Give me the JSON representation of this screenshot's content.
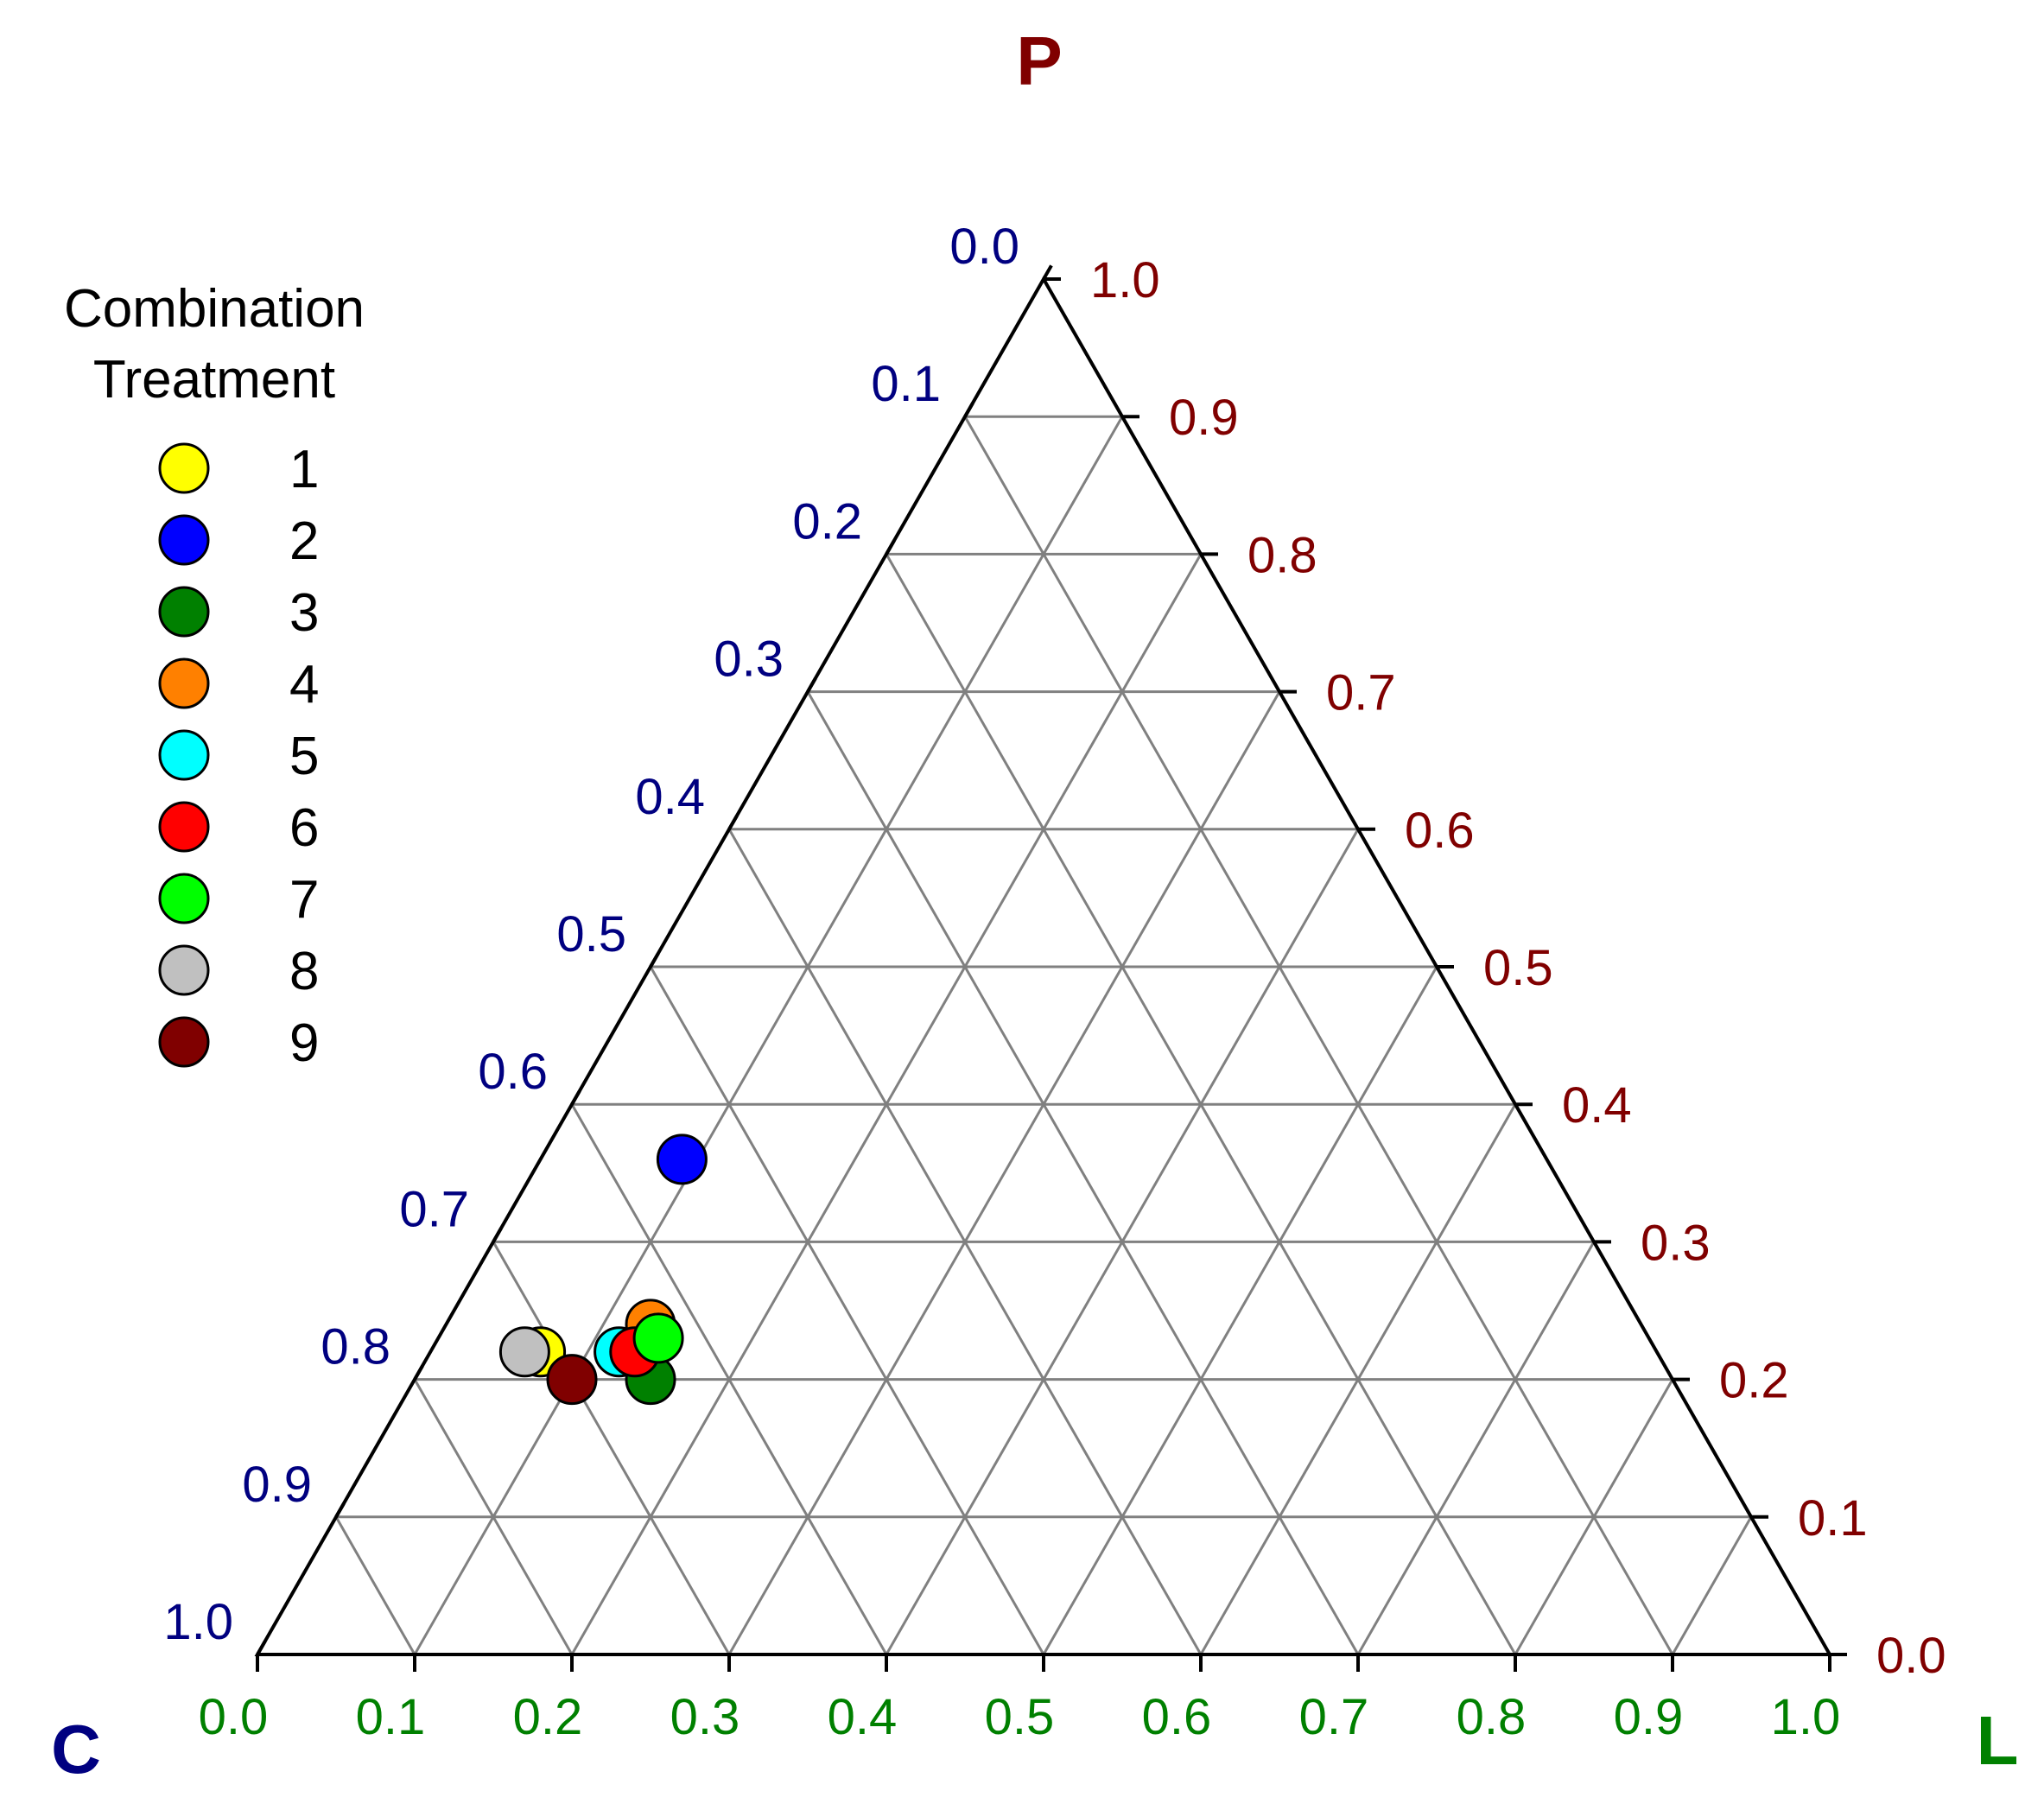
{
  "chart_data": {
    "type": "scatter",
    "subtype": "ternary",
    "axes": {
      "P": {
        "label": "P",
        "color": "#800000",
        "range": [
          0,
          1
        ]
      },
      "C": {
        "label": "C",
        "color": "#000080",
        "range": [
          0,
          1
        ]
      },
      "L": {
        "label": "L",
        "color": "#008000",
        "range": [
          0,
          1
        ]
      }
    },
    "ticks": {
      "C": [
        "0.0",
        "0.1",
        "0.2",
        "0.3",
        "0.4",
        "0.5",
        "0.6",
        "0.7",
        "0.8",
        "0.9",
        "1.0"
      ],
      "P": [
        "0.0",
        "0.1",
        "0.2",
        "0.3",
        "0.4",
        "0.5",
        "0.6",
        "0.7",
        "0.8",
        "0.9",
        "1.0"
      ],
      "L": [
        "0.0",
        "0.1",
        "0.2",
        "0.3",
        "0.4",
        "0.5",
        "0.6",
        "0.7",
        "0.8",
        "0.9",
        "1.0"
      ]
    },
    "grid": true,
    "legend": {
      "position": "top-left",
      "title_line1": "Combination",
      "title_line2": "Treatment"
    },
    "series": [
      {
        "name": "1",
        "color": "#FFFF00",
        "P": 0.22,
        "L": 0.07,
        "C": 0.71
      },
      {
        "name": "2",
        "color": "#0000FF",
        "P": 0.36,
        "L": 0.09,
        "C": 0.55
      },
      {
        "name": "3",
        "color": "#008000",
        "P": 0.2,
        "L": 0.15,
        "C": 0.65
      },
      {
        "name": "4",
        "color": "#FF8000",
        "P": 0.24,
        "L": 0.13,
        "C": 0.63
      },
      {
        "name": "5",
        "color": "#00FFFF",
        "P": 0.22,
        "L": 0.12,
        "C": 0.66
      },
      {
        "name": "6",
        "color": "#FF0000",
        "P": 0.22,
        "L": 0.13,
        "C": 0.65
      },
      {
        "name": "7",
        "color": "#00FF00",
        "P": 0.23,
        "L": 0.14,
        "C": 0.63
      },
      {
        "name": "8",
        "color": "#C0C0C0",
        "P": 0.22,
        "L": 0.06,
        "C": 0.72
      },
      {
        "name": "9",
        "color": "#800000",
        "P": 0.2,
        "L": 0.1,
        "C": 0.7
      }
    ]
  }
}
